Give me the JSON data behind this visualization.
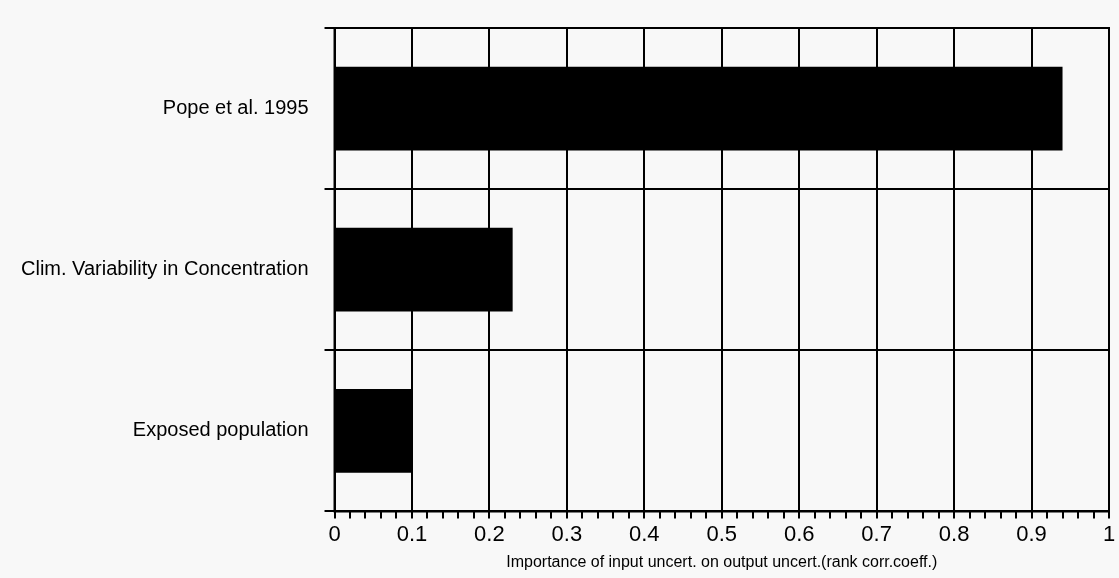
{
  "chart_data": {
    "type": "bar",
    "orientation": "horizontal",
    "xlabel": "Importance of input uncert. on output uncert.(rank corr.coeff.)",
    "categories": [
      "Pope et al. 1995",
      "Clim. Variability in Concentration",
      "Exposed population"
    ],
    "values": [
      0.94,
      0.23,
      0.1
    ],
    "color": "#000000",
    "xlim": [
      0,
      1
    ],
    "xticks": [
      0,
      {
        "value": 0.02,
        "label": null
      },
      {
        "value": 0.04,
        "label": null
      },
      {
        "value": 0.06,
        "label": null
      },
      {
        "value": 0.08,
        "label": null
      },
      0.1,
      {
        "value": 0.12,
        "label": null
      },
      {
        "value": 0.14,
        "label": null
      },
      {
        "value": 0.16,
        "label": null
      },
      {
        "value": 0.18,
        "label": null
      },
      0.2,
      {
        "value": 0.22,
        "label": null
      },
      {
        "value": 0.24,
        "label": null
      },
      {
        "value": 0.26,
        "label": null
      },
      {
        "value": 0.28,
        "label": null
      },
      0.3,
      {
        "value": 0.32,
        "label": null
      },
      {
        "value": 0.34,
        "label": null
      },
      {
        "value": 0.36,
        "label": null
      },
      {
        "value": 0.38,
        "label": null
      },
      0.4,
      {
        "value": 0.42,
        "label": null
      },
      {
        "value": 0.44,
        "label": null
      },
      {
        "value": 0.46,
        "label": null
      },
      {
        "value": 0.48,
        "label": null
      },
      0.5,
      {
        "value": 0.52,
        "label": null
      },
      {
        "value": 0.54,
        "label": null
      },
      {
        "value": 0.56,
        "label": null
      },
      {
        "value": 0.58,
        "label": null
      },
      0.6,
      {
        "value": 0.62,
        "label": null
      },
      {
        "value": 0.64,
        "label": null
      },
      {
        "value": 0.66,
        "label": null
      },
      {
        "value": 0.68,
        "label": null
      },
      0.7,
      {
        "value": 0.72,
        "label": null
      },
      {
        "value": 0.74,
        "label": null
      },
      {
        "value": 0.76,
        "label": null
      },
      {
        "value": 0.78,
        "label": null
      },
      0.8,
      {
        "value": 0.82,
        "label": null
      },
      {
        "value": 0.84,
        "label": null
      },
      {
        "value": 0.86,
        "label": null
      },
      {
        "value": 0.88,
        "label": null
      },
      0.9,
      {
        "value": 0.92,
        "label": null
      },
      {
        "value": 0.94,
        "label": null
      },
      {
        "value": 0.96,
        "label": null
      },
      {
        "value": 0.98,
        "label": null
      },
      1
    ],
    "grid": true,
    "legend": false
  }
}
